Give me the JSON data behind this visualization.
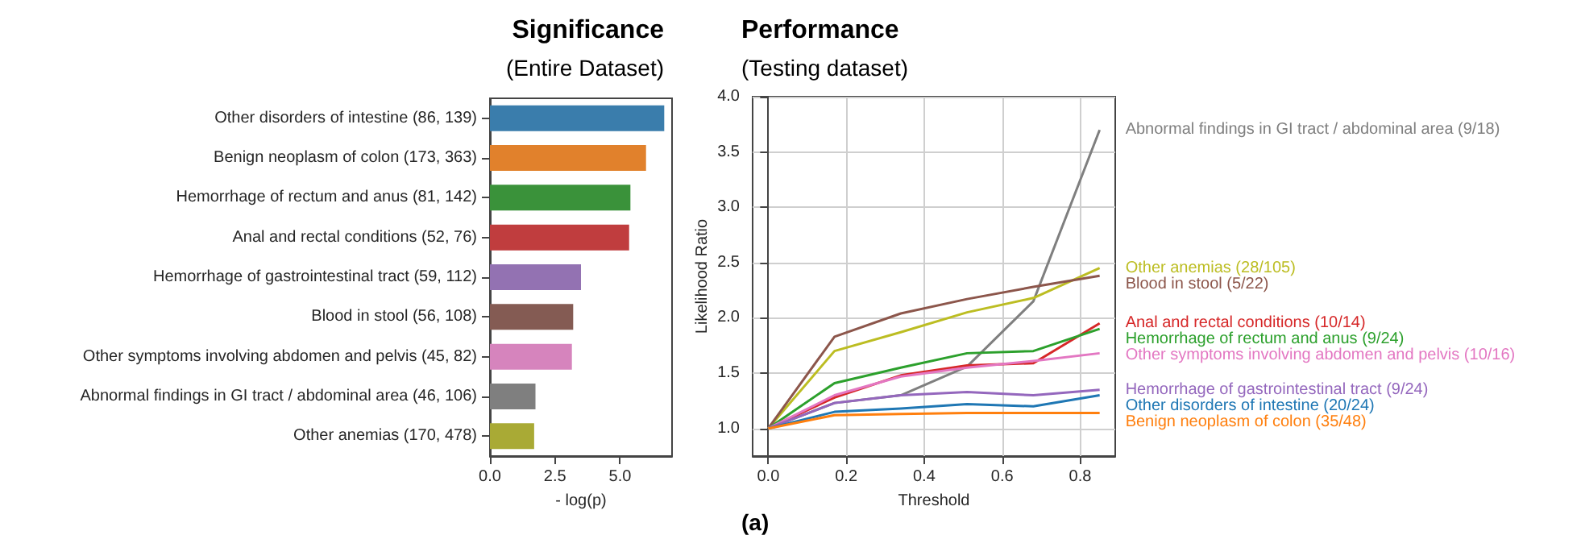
{
  "chart_data": [
    {
      "type": "bar",
      "orientation": "horizontal",
      "title": "Significance",
      "subtitle": "(Entire Dataset)",
      "xlabel": "- log(p)",
      "categories": [
        "Other disorders of intestine (86, 139)",
        "Benign neoplasm of colon (173, 363)",
        "Hemorrhage of rectum and anus (81, 142)",
        "Anal and rectal conditions (52, 76)",
        "Hemorrhage of gastrointestinal tract (59, 112)",
        "Blood in stool (56, 108)",
        "Other symptoms involving abdomen and pelvis (45, 82)",
        "Abnormal findings in GI tract / abdominal area (46, 106)",
        "Other anemias (170, 478)"
      ],
      "values": [
        6.7,
        6.0,
        5.4,
        5.35,
        3.5,
        3.2,
        3.15,
        1.75,
        1.7
      ],
      "colors": [
        "#3a7dac",
        "#e1812c",
        "#3a923a",
        "#c03d3e",
        "#9372b2",
        "#845b53",
        "#d684bd",
        "#7f7f7f",
        "#a9aa35"
      ],
      "xlim": [
        0,
        7.0
      ],
      "xticks": [
        {
          "value": 0,
          "label": "0.0"
        },
        {
          "value": 2.5,
          "label": "2.5"
        },
        {
          "value": 5,
          "label": "5.0"
        }
      ]
    },
    {
      "type": "line",
      "title": "Performance",
      "subtitle": "(Testing dataset)",
      "xlabel": "Threshold",
      "ylabel": "Likelihood Ratio",
      "grid": true,
      "x": [
        0,
        0.17,
        0.34,
        0.51,
        0.68,
        0.85
      ],
      "series": [
        {
          "name": "Abnormal findings in GI tract / abdominal area (9/18)",
          "color": "#7f7f7f",
          "values": [
            1.0,
            1.23,
            1.3,
            1.56,
            2.15,
            3.7
          ]
        },
        {
          "name": "Other anemias (28/105)",
          "color": "#bcbd22",
          "values": [
            1.0,
            1.7,
            1.87,
            2.05,
            2.18,
            2.45
          ]
        },
        {
          "name": "Blood in stool (5/22)",
          "color": "#8c564b",
          "values": [
            1.0,
            1.83,
            2.04,
            2.17,
            2.28,
            2.38
          ]
        },
        {
          "name": "Anal and rectal conditions (10/14)",
          "color": "#d62728",
          "values": [
            1.0,
            1.28,
            1.48,
            1.57,
            1.59,
            1.95
          ]
        },
        {
          "name": "Hemorrhage of rectum and anus (9/24)",
          "color": "#2ca02c",
          "values": [
            1.0,
            1.41,
            1.55,
            1.68,
            1.7,
            1.9
          ]
        },
        {
          "name": "Other symptoms involving abdomen and pelvis (10/16)",
          "color": "#e377c2",
          "values": [
            1.0,
            1.3,
            1.47,
            1.55,
            1.61,
            1.68
          ]
        },
        {
          "name": "Hemorrhage of gastrointestinal tract (9/24)",
          "color": "#9467bd",
          "values": [
            1.0,
            1.23,
            1.3,
            1.33,
            1.3,
            1.35
          ]
        },
        {
          "name": "Other disorders of intestine (20/24)",
          "color": "#1f77b4",
          "values": [
            1.0,
            1.15,
            1.18,
            1.22,
            1.2,
            1.3
          ]
        },
        {
          "name": "Benign neoplasm of colon (35/48)",
          "color": "#ff7f0e",
          "values": [
            1.0,
            1.12,
            1.13,
            1.14,
            1.14,
            1.14
          ]
        }
      ],
      "xlim": [
        -0.04,
        0.89
      ],
      "xticks": [
        {
          "value": 0,
          "label": "0.0"
        },
        {
          "value": 0.2,
          "label": "0.2"
        },
        {
          "value": 0.4,
          "label": "0.4"
        },
        {
          "value": 0.6,
          "label": "0.6"
        },
        {
          "value": 0.8,
          "label": "0.8"
        }
      ],
      "ylim": [
        0.75,
        4.0
      ],
      "yticks": [
        {
          "value": 1,
          "label": "1.0"
        },
        {
          "value": 1.5,
          "label": "1.5"
        },
        {
          "value": 2,
          "label": "2.0"
        },
        {
          "value": 2.5,
          "label": "2.5"
        },
        {
          "value": 3,
          "label": "3.0"
        },
        {
          "value": 3.5,
          "label": "3.5"
        },
        {
          "value": 4,
          "label": "4.0"
        }
      ],
      "annotations": [
        "(a)"
      ]
    }
  ]
}
